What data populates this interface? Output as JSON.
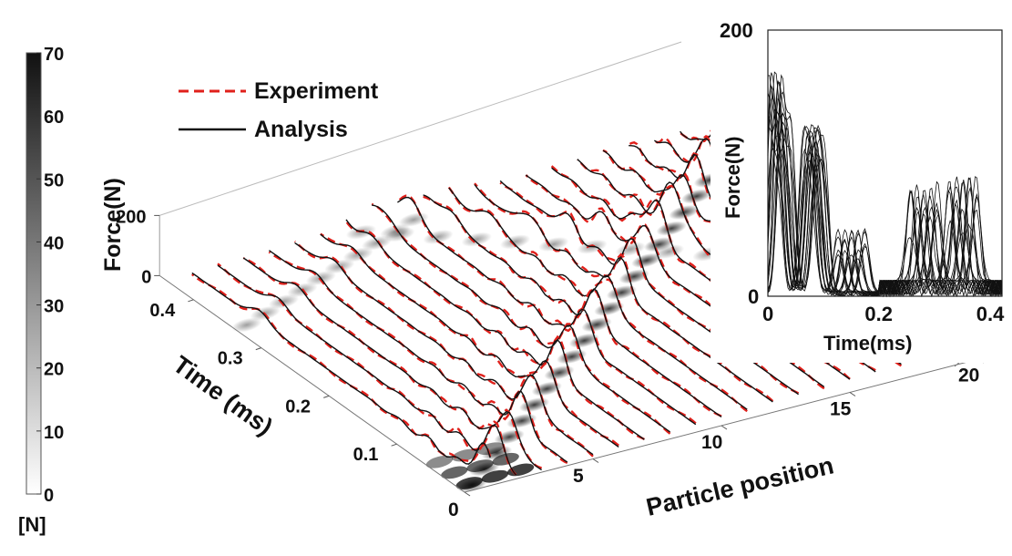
{
  "colorbar": {
    "ticks": [
      "70",
      "60",
      "50",
      "40",
      "30",
      "20",
      "10",
      "0"
    ],
    "values": [
      70,
      60,
      50,
      40,
      30,
      20,
      10,
      0
    ],
    "range": [
      0,
      70
    ],
    "unit_label": "[N]"
  },
  "legend": {
    "experiment_label": "Experiment",
    "analysis_label": "Analysis",
    "experiment_color": "#e0201b",
    "analysis_color": "#111111"
  },
  "chart_data": [
    {
      "type": "waterfall-3d",
      "xlabel": "Particle position",
      "ylabel": "Time (ms)",
      "zlabel": "Force(N)",
      "x_ticks": [
        "0",
        "5",
        "10",
        "15",
        "20"
      ],
      "x_tick_values": [
        0,
        5,
        10,
        15,
        20
      ],
      "y_ticks": [
        "0.1",
        "0.2",
        "0.3",
        "0.4"
      ],
      "y_tick_values": [
        0.1,
        0.2,
        0.3,
        0.4
      ],
      "z_ticks": [
        "0",
        "200"
      ],
      "z_tick_values": [
        0,
        200
      ],
      "particles": [
        1,
        2,
        3,
        4,
        5,
        6,
        7,
        8,
        9,
        10,
        11,
        12,
        13,
        14,
        15,
        16,
        17,
        18,
        19,
        20
      ],
      "time_range_ms": [
        0,
        0.45
      ],
      "wave_arrival_ms_per_particle": 0.0195,
      "reflection_speed_ms_per_particle": 0.021,
      "series": [
        {
          "name": "Experiment",
          "style": "dashed",
          "color": "#e0201b"
        },
        {
          "name": "Analysis",
          "style": "solid",
          "color": "#111111"
        }
      ]
    },
    {
      "type": "line",
      "xlabel": "Time(ms)",
      "ylabel": "Force(N)",
      "x_ticks": [
        "0",
        "0.2",
        "0.4"
      ],
      "x_tick_values": [
        0,
        0.2,
        0.4
      ],
      "y_ticks": [
        "0",
        "200"
      ],
      "y_tick_values": [
        0,
        200
      ],
      "xlim": [
        0,
        0.42
      ],
      "ylim": [
        0,
        200
      ],
      "peaks": [
        {
          "t": 0.012,
          "force": 158
        },
        {
          "t": 0.03,
          "force": 120
        },
        {
          "t": 0.075,
          "force": 108
        },
        {
          "t": 0.09,
          "force": 96
        },
        {
          "t": 0.15,
          "force": 48
        },
        {
          "t": 0.28,
          "force": 75
        },
        {
          "t": 0.35,
          "force": 82
        }
      ]
    }
  ]
}
